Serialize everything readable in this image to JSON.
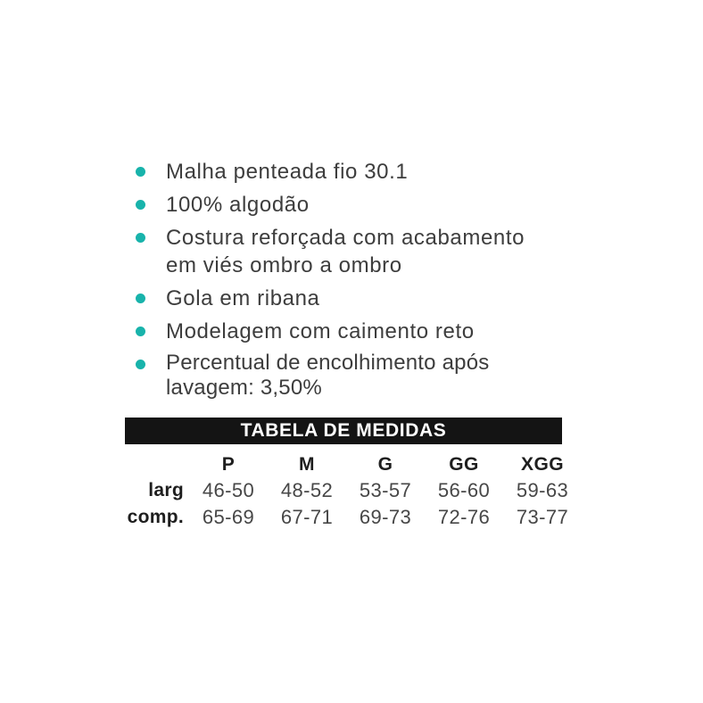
{
  "colors": {
    "bullet_accent": "#18b3ab",
    "table_title_bar_bg": "#141414",
    "table_title_text": "#ffffff"
  },
  "features": [
    {
      "lines": [
        "Malha penteada fio 30.1"
      ]
    },
    {
      "lines": [
        "100% algodão"
      ]
    },
    {
      "lines": [
        "Costura reforçada com acabamento",
        "em viés ombro a ombro"
      ]
    },
    {
      "lines": [
        "Gola em ribana"
      ]
    },
    {
      "lines": [
        "Modelagem com caimento reto"
      ]
    },
    {
      "lines": [
        "Percentual de encolhimento após",
        "lavagem: 3,50%"
      ]
    }
  ],
  "size_table": {
    "title": "TABELA DE MEDIDAS",
    "columns": [
      "P",
      "M",
      "G",
      "GG",
      "XGG"
    ],
    "rows": [
      {
        "label": "larg",
        "values": [
          "46-50",
          "48-52",
          "53-57",
          "56-60",
          "59-63"
        ]
      },
      {
        "label": "comp.",
        "values": [
          "65-69",
          "67-71",
          "69-73",
          "72-76",
          "73-77"
        ]
      }
    ]
  }
}
